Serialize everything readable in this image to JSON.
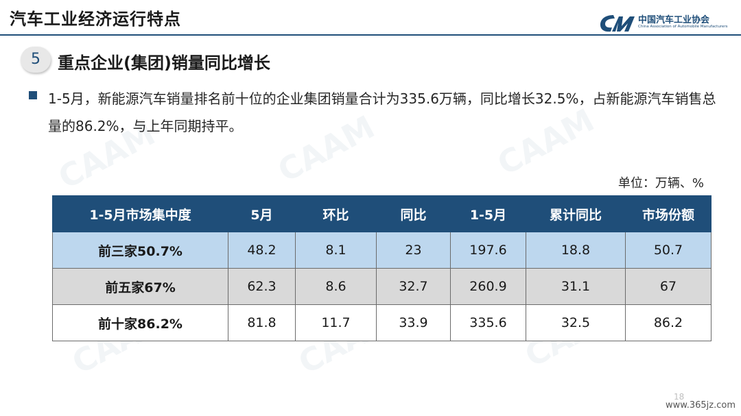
{
  "header": {
    "title": "汽车工业经济运行特点",
    "logo_cn": "中国汽车工业协会",
    "logo_en": "China Association of Automobile Manufacturers"
  },
  "section": {
    "number": "5",
    "title": "重点企业(集团)销量同比增长"
  },
  "bullet": {
    "text": "1-5月，新能源汽车销量排名前十位的企业集团销量合计为335.6万辆，同比增长32.5%，占新能源汽车销售总量的86.2%，与上年同期持平。"
  },
  "unit": "单位：万辆、%",
  "table": {
    "headers": [
      "1-5月市场集中度",
      "5月",
      "环比",
      "同比",
      "1-5月",
      "累计同比",
      "市场份额"
    ],
    "rows": [
      [
        "前三家50.7%",
        "48.2",
        "8.1",
        "23",
        "197.6",
        "18.8",
        "50.7"
      ],
      [
        "前五家67%",
        "62.3",
        "8.6",
        "32.7",
        "260.9",
        "31.1",
        "67"
      ],
      [
        "前十家86.2%",
        "81.8",
        "11.7",
        "33.9",
        "335.6",
        "32.5",
        "86.2"
      ]
    ]
  },
  "footer": {
    "page_number": "18",
    "site": "www.365jz.com"
  },
  "colors": {
    "brand": "#1f4e79",
    "row_light_blue": "#bdd7ee",
    "row_gray": "#d9d9d9"
  }
}
